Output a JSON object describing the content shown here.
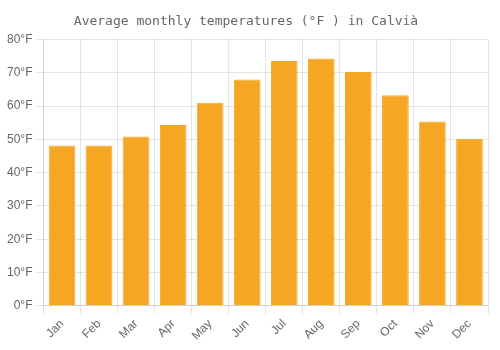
{
  "chart_data": {
    "type": "bar",
    "title": "Average monthly temperatures (°F ) in Calvià",
    "categories": [
      "Jan",
      "Feb",
      "Mar",
      "Apr",
      "May",
      "Jun",
      "Jul",
      "Aug",
      "Sep",
      "Oct",
      "Nov",
      "Dec"
    ],
    "values": [
      48.2,
      48.2,
      50.9,
      54.3,
      61.0,
      68.0,
      73.6,
      74.3,
      70.3,
      63.3,
      55.4,
      50.2
    ],
    "color": "#F5A623",
    "ylim": [
      0,
      80
    ],
    "yticks": [
      {
        "value": 0,
        "label": "0°F"
      },
      {
        "value": 10,
        "label": "10°F"
      },
      {
        "value": 20,
        "label": "20°F"
      },
      {
        "value": 30,
        "label": "30°F"
      },
      {
        "value": 40,
        "label": "40°F"
      },
      {
        "value": 50,
        "label": "50°F"
      },
      {
        "value": 60,
        "label": "60°F"
      },
      {
        "value": 70,
        "label": "70°F"
      },
      {
        "value": 80,
        "label": "80°F"
      }
    ],
    "grid": true
  }
}
